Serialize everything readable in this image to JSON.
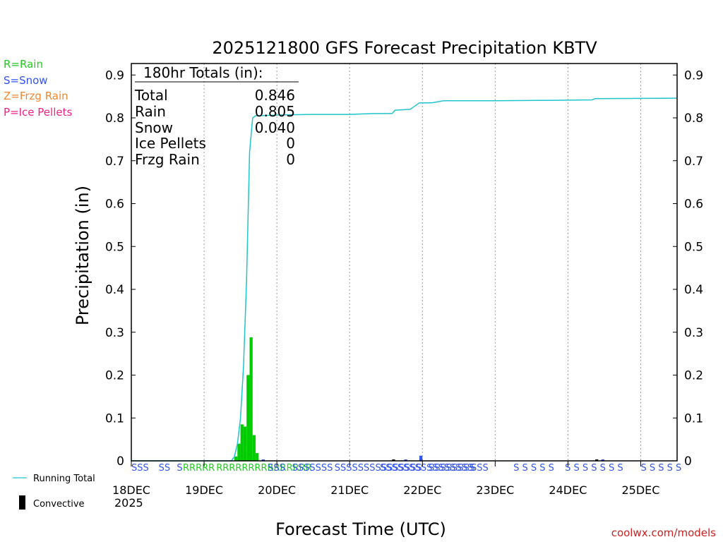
{
  "chart_data": {
    "type": "bar",
    "title": "2025121800 GFS Forecast Precipitation KBTV",
    "xlabel": "Forecast Time (UTC)",
    "ylabel": "Precipitation (in)",
    "ylim": [
      0,
      0.95
    ],
    "xlim_hours": [
      0,
      180
    ],
    "y_ticks": [
      "0",
      "0.1",
      "0.2",
      "0.3",
      "0.4",
      "0.5",
      "0.6",
      "0.7",
      "0.8",
      "0.9"
    ],
    "y_tick_values": [
      0,
      0.1,
      0.2,
      0.3,
      0.4,
      0.5,
      0.6,
      0.7,
      0.8,
      0.9
    ],
    "x_ticks": [
      {
        "hour": 0,
        "label": "18DEC"
      },
      {
        "hour": 24,
        "label": "19DEC"
      },
      {
        "hour": 48,
        "label": "20DEC"
      },
      {
        "hour": 72,
        "label": "21DEC"
      },
      {
        "hour": 96,
        "label": "22DEC"
      },
      {
        "hour": 120,
        "label": "23DEC"
      },
      {
        "hour": 144,
        "label": "24DEC"
      },
      {
        "hour": 168,
        "label": "25DEC"
      }
    ],
    "year_label": "2025",
    "ptype_legend": [
      {
        "text": "R=Rain",
        "color": "#22cc22"
      },
      {
        "text": "S=Snow",
        "color": "#3355ee"
      },
      {
        "text": "Z=Frzg Rain",
        "color": "#ee8833"
      },
      {
        "text": "P=Ice Pellets",
        "color": "#ee2288"
      }
    ],
    "totals_box": {
      "header": "180hr Totals (in):",
      "rows": [
        {
          "label": "Total",
          "value": "0.846"
        },
        {
          "label": "Rain",
          "value": "0.805"
        },
        {
          "label": "Snow",
          "value": "0.040"
        },
        {
          "label": "Ice Pellets",
          "value": "0"
        },
        {
          "label": "Frzg Rain",
          "value": "0"
        }
      ]
    },
    "series": [
      {
        "name": "Running Total",
        "color": "#22c4cc",
        "points": [
          [
            0,
            0
          ],
          [
            33,
            0
          ],
          [
            34,
            0.01
          ],
          [
            35,
            0.04
          ],
          [
            36,
            0.1
          ],
          [
            37,
            0.22
          ],
          [
            38,
            0.42
          ],
          [
            39,
            0.72
          ],
          [
            40,
            0.8
          ],
          [
            41,
            0.805
          ],
          [
            42,
            0.805
          ],
          [
            50,
            0.807
          ],
          [
            60,
            0.808
          ],
          [
            72,
            0.808
          ],
          [
            80,
            0.81
          ],
          [
            86,
            0.81
          ],
          [
            87,
            0.818
          ],
          [
            92,
            0.82
          ],
          [
            93,
            0.825
          ],
          [
            95,
            0.835
          ],
          [
            99,
            0.835
          ],
          [
            103,
            0.84
          ],
          [
            120,
            0.84
          ],
          [
            140,
            0.841
          ],
          [
            152,
            0.842
          ],
          [
            153,
            0.845
          ],
          [
            180,
            0.846
          ]
        ]
      },
      {
        "name": "Rain Bars",
        "color": "#00cc00",
        "bars": [
          [
            34.5,
            0.01
          ],
          [
            35.5,
            0.04
          ],
          [
            36.5,
            0.085
          ],
          [
            37.5,
            0.08
          ],
          [
            38.5,
            0.2
          ],
          [
            39.5,
            0.288
          ],
          [
            40.5,
            0.06
          ],
          [
            41.5,
            0.018
          ]
        ]
      },
      {
        "name": "Snow Bars",
        "color": "#3355ee",
        "bars": [
          [
            95.5,
            0.012
          ],
          [
            43.5,
            0.002
          ],
          [
            90.5,
            0.002
          ],
          [
            155.5,
            0.002
          ]
        ]
      },
      {
        "name": "Convective",
        "color": "#000000",
        "bars": [
          [
            86.5,
            0.003
          ],
          [
            153.5,
            0.002
          ]
        ]
      }
    ],
    "ptype_rows": [
      {
        "text": "SSS",
        "hour": 0,
        "color": "#3355ee"
      },
      {
        "text": "SS",
        "hour": 9,
        "color": "#3355ee"
      },
      {
        "text": "S",
        "hour": 15,
        "color": "#3355ee"
      },
      {
        "text": "RRRRR",
        "hour": 17,
        "color": "#22cc22"
      },
      {
        "text": "RRRRRRRRRRRRRRR",
        "hour": 28,
        "color": "#22cc22"
      },
      {
        "text": "SSS",
        "hour": 45,
        "color": "#3355ee"
      },
      {
        "text": "SSSSSSS",
        "hour": 53,
        "color": "#3355ee"
      },
      {
        "text": "SSSSSSSSSSSSSSS",
        "hour": 67,
        "color": "#3355ee"
      },
      {
        "text": "SSSSSSSSSSSSSSSS",
        "hour": 82,
        "color": "#3355ee"
      },
      {
        "text": "SSSSSSSS",
        "hour": 98,
        "color": "#3355ee"
      },
      {
        "text": "SSS",
        "hour": 112,
        "color": "#3355ee"
      },
      {
        "text": "S S S S S",
        "hour": 126,
        "color": "#3355ee"
      },
      {
        "text": "S S S S S S S",
        "hour": 143,
        "color": "#3355ee"
      },
      {
        "text": "S S S S S",
        "hour": 168,
        "color": "#3355ee"
      }
    ],
    "legend_bottom": [
      {
        "name": "Running Total",
        "kind": "line",
        "color": "#22c4cc"
      },
      {
        "name": "Convective",
        "kind": "bar",
        "color": "#000000"
      }
    ],
    "credit": "coolwx.com/models"
  }
}
